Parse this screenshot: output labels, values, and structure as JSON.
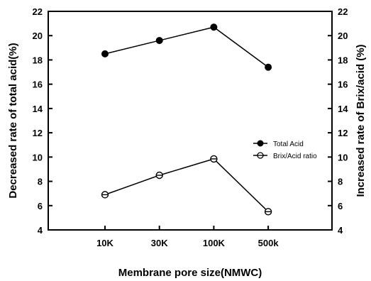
{
  "chart_data": {
    "type": "line",
    "categories": [
      "10K",
      "30K",
      "100K",
      "500k"
    ],
    "xlabel": "Membrane pore size(NMWC)",
    "ylabel_left": "Decreased rate of total acid(%)",
    "ylabel_right": "Increased rate of Brix/acid (%)",
    "ylim_left": [
      4,
      22
    ],
    "ylim_right": [
      4,
      22
    ],
    "yticks": [
      4,
      6,
      8,
      10,
      12,
      14,
      16,
      18,
      20,
      22
    ],
    "grid": false,
    "legend_position": "right",
    "series": [
      {
        "name": "Total Acid",
        "axis": "left",
        "marker": "filled-circle",
        "values": [
          18.5,
          19.6,
          20.7,
          17.4
        ]
      },
      {
        "name": "Brix/Acid ratio",
        "axis": "right",
        "marker": "crossed-circle",
        "values": [
          6.9,
          8.5,
          9.85,
          5.5
        ]
      }
    ]
  }
}
